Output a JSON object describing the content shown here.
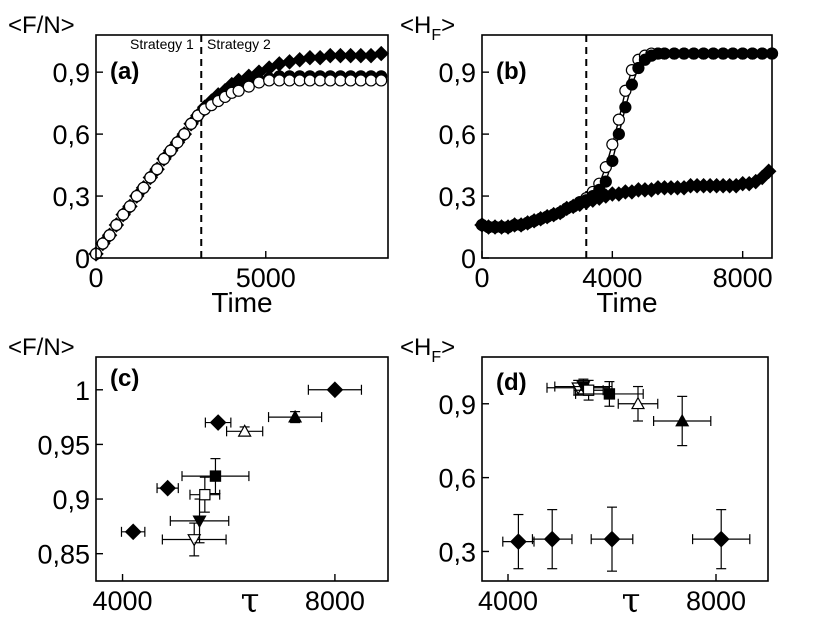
{
  "chart_data": [
    {
      "id": "a",
      "type": "line",
      "panel_label": "(a)",
      "ylabel": "<F/N>",
      "xlabel": "Time",
      "xlim": [
        0,
        8600
      ],
      "ylim": [
        0,
        1.08
      ],
      "xticks": [
        {
          "v": 0,
          "t": "0"
        },
        {
          "v": 5000,
          "t": "5000"
        }
      ],
      "yticks": [
        {
          "v": 0,
          "t": "0"
        },
        {
          "v": 0.3,
          "t": "0,3"
        },
        {
          "v": 0.6,
          "t": "0,6"
        },
        {
          "v": 0.9,
          "t": "0,9"
        }
      ],
      "vline": 3100,
      "annotations": [
        "Strategy 1",
        "Strategy 2"
      ],
      "series": [
        {
          "name": "diamonds",
          "marker": "diamond",
          "line": true,
          "x": [
            0,
            200,
            400,
            600,
            800,
            1000,
            1200,
            1400,
            1600,
            1800,
            2000,
            2200,
            2400,
            2600,
            2800,
            3000,
            3200,
            3400,
            3600,
            3800,
            4000,
            4200,
            4500,
            4800,
            5100,
            5400,
            5700,
            6000,
            6300,
            6600,
            6900,
            7200,
            7500,
            7800,
            8100,
            8400
          ],
          "y": [
            0.02,
            0.07,
            0.11,
            0.16,
            0.21,
            0.25,
            0.3,
            0.34,
            0.39,
            0.43,
            0.48,
            0.52,
            0.56,
            0.6,
            0.65,
            0.69,
            0.73,
            0.76,
            0.79,
            0.81,
            0.84,
            0.86,
            0.88,
            0.9,
            0.92,
            0.94,
            0.95,
            0.96,
            0.97,
            0.97,
            0.98,
            0.98,
            0.98,
            0.98,
            0.98,
            0.99
          ]
        },
        {
          "name": "filled circles",
          "marker": "circle-filled",
          "line": true,
          "x": [
            0,
            200,
            400,
            600,
            800,
            1000,
            1200,
            1400,
            1600,
            1800,
            2000,
            2200,
            2400,
            2600,
            2800,
            3000,
            3200,
            3400,
            3600,
            3800,
            4000,
            4200,
            4500,
            4800,
            5100,
            5400,
            5700,
            6000,
            6300,
            6600,
            6900,
            7200,
            7500,
            7800,
            8100,
            8400
          ],
          "y": [
            0.02,
            0.07,
            0.11,
            0.16,
            0.21,
            0.25,
            0.3,
            0.34,
            0.39,
            0.43,
            0.48,
            0.52,
            0.56,
            0.6,
            0.65,
            0.69,
            0.72,
            0.75,
            0.77,
            0.79,
            0.81,
            0.83,
            0.85,
            0.86,
            0.87,
            0.88,
            0.88,
            0.88,
            0.88,
            0.88,
            0.88,
            0.88,
            0.88,
            0.88,
            0.88,
            0.88
          ]
        },
        {
          "name": "open circles",
          "marker": "circle-open",
          "line": true,
          "x": [
            0,
            200,
            400,
            600,
            800,
            1000,
            1200,
            1400,
            1600,
            1800,
            2000,
            2200,
            2400,
            2600,
            2800,
            3000,
            3200,
            3400,
            3600,
            3800,
            4000,
            4200,
            4500,
            4800,
            5100,
            5400,
            5700,
            6000,
            6300,
            6600,
            6900,
            7200,
            7500,
            7800,
            8100,
            8400
          ],
          "y": [
            0.02,
            0.07,
            0.11,
            0.16,
            0.21,
            0.25,
            0.3,
            0.34,
            0.39,
            0.43,
            0.48,
            0.52,
            0.56,
            0.6,
            0.65,
            0.69,
            0.72,
            0.74,
            0.76,
            0.78,
            0.8,
            0.81,
            0.83,
            0.85,
            0.86,
            0.86,
            0.86,
            0.86,
            0.86,
            0.86,
            0.86,
            0.86,
            0.86,
            0.86,
            0.86,
            0.86
          ]
        }
      ]
    },
    {
      "id": "b",
      "type": "line",
      "panel_label": "(b)",
      "ylabel": "<H_F>",
      "xlabel": "Time",
      "xlim": [
        0,
        8900
      ],
      "ylim": [
        0,
        1.08
      ],
      "xticks": [
        {
          "v": 0,
          "t": "0"
        },
        {
          "v": 4000,
          "t": "4000"
        },
        {
          "v": 8000,
          "t": "8000"
        }
      ],
      "yticks": [
        {
          "v": 0,
          "t": "0"
        },
        {
          "v": 0.3,
          "t": "0,3"
        },
        {
          "v": 0.6,
          "t": "0,6"
        },
        {
          "v": 0.9,
          "t": "0,9"
        }
      ],
      "vline": 3200,
      "annotations": [],
      "series": [
        {
          "name": "open circles",
          "marker": "circle-open",
          "line": true,
          "x": [
            0,
            200,
            400,
            600,
            800,
            1000,
            1200,
            1400,
            1600,
            1800,
            2000,
            2200,
            2400,
            2600,
            2800,
            3000,
            3200,
            3400,
            3600,
            3800,
            4000,
            4200,
            4400,
            4600,
            4800,
            5000,
            5200,
            5400,
            5600,
            5900,
            6200,
            6500,
            6800,
            7100,
            7400,
            7700,
            8000,
            8300,
            8600,
            8900
          ],
          "y": [
            0.16,
            0.15,
            0.15,
            0.15,
            0.15,
            0.16,
            0.16,
            0.17,
            0.18,
            0.19,
            0.2,
            0.21,
            0.22,
            0.24,
            0.25,
            0.27,
            0.29,
            0.32,
            0.36,
            0.44,
            0.55,
            0.67,
            0.81,
            0.91,
            0.96,
            0.98,
            0.99,
            0.99,
            0.99,
            0.99,
            0.99,
            0.99,
            0.99,
            0.99,
            0.99,
            0.99,
            0.99,
            0.99,
            0.99,
            0.99
          ]
        },
        {
          "name": "filled circles",
          "marker": "circle-filled",
          "line": true,
          "x": [
            0,
            200,
            400,
            600,
            800,
            1000,
            1200,
            1400,
            1600,
            1800,
            2000,
            2200,
            2400,
            2600,
            2800,
            3000,
            3200,
            3400,
            3600,
            3800,
            4000,
            4200,
            4400,
            4600,
            4800,
            5000,
            5200,
            5400,
            5600,
            5900,
            6200,
            6500,
            6800,
            7100,
            7400,
            7700,
            8000,
            8300,
            8600,
            8900
          ],
          "y": [
            0.16,
            0.15,
            0.15,
            0.15,
            0.15,
            0.16,
            0.16,
            0.17,
            0.18,
            0.19,
            0.2,
            0.21,
            0.22,
            0.24,
            0.25,
            0.27,
            0.28,
            0.3,
            0.33,
            0.37,
            0.47,
            0.6,
            0.73,
            0.84,
            0.92,
            0.96,
            0.98,
            0.99,
            0.99,
            0.99,
            0.99,
            0.99,
            0.99,
            0.99,
            0.99,
            0.99,
            0.99,
            0.99,
            0.99,
            0.99
          ]
        },
        {
          "name": "diamonds",
          "marker": "diamond",
          "line": true,
          "x": [
            0,
            200,
            400,
            600,
            800,
            1000,
            1200,
            1400,
            1600,
            1800,
            2000,
            2200,
            2400,
            2600,
            2800,
            3000,
            3200,
            3400,
            3600,
            3800,
            4000,
            4200,
            4400,
            4600,
            4800,
            5000,
            5200,
            5400,
            5600,
            5800,
            6000,
            6200,
            6400,
            6600,
            6800,
            7000,
            7200,
            7400,
            7600,
            7800,
            8000,
            8200,
            8400,
            8600,
            8800
          ],
          "y": [
            0.16,
            0.15,
            0.15,
            0.15,
            0.15,
            0.16,
            0.16,
            0.17,
            0.18,
            0.19,
            0.2,
            0.21,
            0.22,
            0.24,
            0.25,
            0.26,
            0.27,
            0.28,
            0.29,
            0.3,
            0.31,
            0.31,
            0.32,
            0.32,
            0.33,
            0.33,
            0.33,
            0.34,
            0.34,
            0.34,
            0.34,
            0.34,
            0.35,
            0.35,
            0.35,
            0.35,
            0.35,
            0.35,
            0.35,
            0.35,
            0.36,
            0.36,
            0.37,
            0.39,
            0.42
          ]
        }
      ]
    },
    {
      "id": "c",
      "type": "scatter",
      "panel_label": "(c)",
      "ylabel": "<F/N>",
      "xlabel": "τ",
      "xlim": [
        3500,
        9000
      ],
      "ylim": [
        0.825,
        1.03
      ],
      "xticks": [
        {
          "v": 4000,
          "t": "4000"
        },
        {
          "v": 8000,
          "t": "8000"
        }
      ],
      "yticks": [
        {
          "v": 0.85,
          "t": "0,85"
        },
        {
          "v": 0.9,
          "t": "0,9"
        },
        {
          "v": 0.95,
          "t": "0,95"
        },
        {
          "v": 1,
          "t": "1"
        }
      ],
      "points": [
        {
          "marker": "diamond",
          "x": 4200,
          "y": 0.87,
          "xerr": 220,
          "yerr": 0
        },
        {
          "marker": "diamond",
          "x": 4850,
          "y": 0.91,
          "xerr": 200,
          "yerr": 0
        },
        {
          "marker": "diamond",
          "x": 5800,
          "y": 0.97,
          "xerr": 240,
          "yerr": 0
        },
        {
          "marker": "diamond",
          "x": 8000,
          "y": 1.0,
          "xerr": 500,
          "yerr": 0
        },
        {
          "marker": "triangle-down-open",
          "x": 5350,
          "y": 0.863,
          "xerr": 600,
          "yerr": 0.015
        },
        {
          "marker": "triangle-down-filled",
          "x": 5450,
          "y": 0.88,
          "xerr": 550,
          "yerr": 0.02
        },
        {
          "marker": "square-open",
          "x": 5550,
          "y": 0.904,
          "xerr": 280,
          "yerr": 0.016
        },
        {
          "marker": "square-filled",
          "x": 5750,
          "y": 0.921,
          "xerr": 630,
          "yerr": 0.016
        },
        {
          "marker": "triangle-up-open",
          "x": 6300,
          "y": 0.962,
          "xerr": 340,
          "yerr": 0.004
        },
        {
          "marker": "triangle-up-filled",
          "x": 7250,
          "y": 0.975,
          "xerr": 500,
          "yerr": 0.005
        }
      ]
    },
    {
      "id": "d",
      "type": "scatter",
      "panel_label": "(d)",
      "ylabel": "<H_F>",
      "xlabel": "τ",
      "xlim": [
        3500,
        9000
      ],
      "ylim": [
        0.18,
        1.09
      ],
      "xticks": [
        {
          "v": 4000,
          "t": "4000"
        },
        {
          "v": 8000,
          "t": "8000"
        }
      ],
      "yticks": [
        {
          "v": 0.3,
          "t": "0,3"
        },
        {
          "v": 0.6,
          "t": "0,6"
        },
        {
          "v": 0.9,
          "t": "0,9"
        }
      ],
      "points": [
        {
          "marker": "diamond",
          "x": 4200,
          "y": 0.34,
          "xerr": 300,
          "yerr": 0.11
        },
        {
          "marker": "diamond",
          "x": 4850,
          "y": 0.35,
          "xerr": 380,
          "yerr": 0.12
        },
        {
          "marker": "diamond",
          "x": 6000,
          "y": 0.35,
          "xerr": 400,
          "yerr": 0.13
        },
        {
          "marker": "diamond",
          "x": 8100,
          "y": 0.35,
          "xerr": 550,
          "yerr": 0.12
        },
        {
          "marker": "triangle-down-open",
          "x": 5350,
          "y": 0.965,
          "xerr": 600,
          "yerr": 0.03
        },
        {
          "marker": "triangle-down-filled",
          "x": 5450,
          "y": 0.97,
          "xerr": 550,
          "yerr": 0.03
        },
        {
          "marker": "square-open",
          "x": 5550,
          "y": 0.955,
          "xerr": 280,
          "yerr": 0.04
        },
        {
          "marker": "square-filled",
          "x": 5950,
          "y": 0.94,
          "xerr": 650,
          "yerr": 0.05
        },
        {
          "marker": "triangle-up-open",
          "x": 6500,
          "y": 0.9,
          "xerr": 380,
          "yerr": 0.07
        },
        {
          "marker": "triangle-up-filled",
          "x": 7350,
          "y": 0.83,
          "xerr": 550,
          "yerr": 0.1
        }
      ]
    }
  ]
}
